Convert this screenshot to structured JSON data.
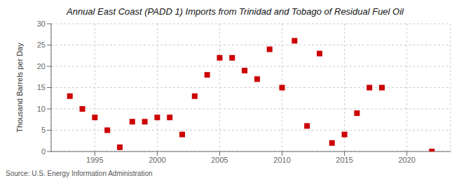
{
  "chart_data": {
    "type": "scatter",
    "title": "Annual East Coast (PADD 1) Imports from Trinidad and Tobago of Residual Fuel Oil",
    "y_label": "Thousand Barrels per Day",
    "annotations": [
      "Source: U.S. Energy Information Administration"
    ],
    "x": [
      1993,
      1994,
      1995,
      1996,
      1997,
      1998,
      1999,
      2000,
      2001,
      2002,
      2003,
      2004,
      2005,
      2006,
      2007,
      2008,
      2009,
      2010,
      2011,
      2012,
      2013,
      2014,
      2015,
      2016,
      2017,
      2018,
      2022
    ],
    "values": [
      13.0,
      10.0,
      8.0,
      5.0,
      1.0,
      7.0,
      7.0,
      8.0,
      8.0,
      4.0,
      13.0,
      18.0,
      22.0,
      22.0,
      19.0,
      17.0,
      24.0,
      15.0,
      26.0,
      6.0,
      23.0,
      2.0,
      4.0,
      9.0,
      15.0,
      15.0,
      0.0
    ],
    "color": "#cc0000",
    "marker": "square",
    "xlim": [
      1991.5,
      2023.5
    ],
    "xticks": [
      1995,
      2000,
      2005,
      2010,
      2015,
      2020
    ],
    "ylim": [
      0,
      30
    ],
    "yticks": [
      0,
      5,
      10,
      15,
      20,
      25,
      30
    ],
    "grid": true
  }
}
